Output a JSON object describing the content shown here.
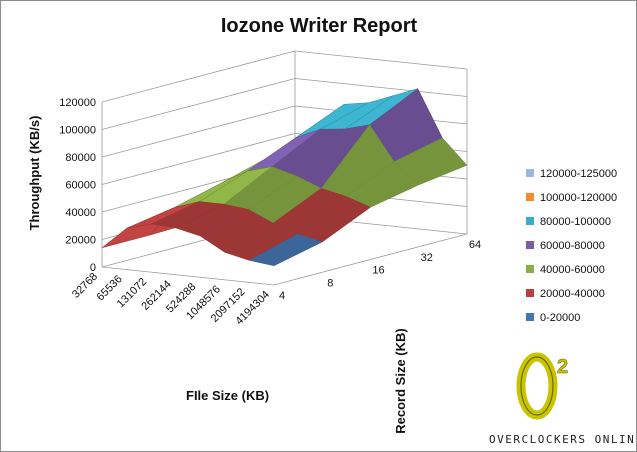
{
  "chart_data": {
    "type": "surface",
    "title": "Iozone Writer Report",
    "xlabel": "FIle Size (KB)",
    "ylabel": "Record Size (KB)",
    "zlabel": "Throughput (KB/s)",
    "file_sizes": [
      "32768",
      "65536",
      "131072",
      "262144",
      "524288",
      "1048576",
      "2097152",
      "4194304"
    ],
    "record_sizes": [
      "4",
      "8",
      "16",
      "32",
      "64"
    ],
    "z_ticks": [
      "0",
      "20000",
      "40000",
      "60000",
      "80000",
      "100000",
      "120000"
    ],
    "z_range": [
      0,
      120000
    ],
    "values": [
      [
        14000,
        14000,
        15000,
        18000,
        22000
      ],
      [
        30000,
        36000,
        45000,
        55000,
        60000
      ],
      [
        35000,
        42000,
        55000,
        70000,
        85000
      ],
      [
        34000,
        42000,
        60000,
        78000,
        88000
      ],
      [
        30000,
        40000,
        55000,
        80000,
        95000
      ],
      [
        20000,
        32000,
        48000,
        85000,
        102000
      ],
      [
        16000,
        26000,
        44000,
        60000,
        68000
      ],
      [
        14000,
        22000,
        38000,
        45000,
        50000
      ]
    ],
    "legend": [
      {
        "label": "120000-125000",
        "color": "#9bb7e0"
      },
      {
        "label": "100000-120000",
        "color": "#f58a2e"
      },
      {
        "label": "80000-100000",
        "color": "#3aaec7"
      },
      {
        "label": "60000-80000",
        "color": "#7a5cab"
      },
      {
        "label": "40000-60000",
        "color": "#8aae45"
      },
      {
        "label": "20000-40000",
        "color": "#b8413f"
      },
      {
        "label": "0-20000",
        "color": "#4677b5"
      }
    ],
    "legend_position": "right",
    "grid": true
  },
  "logo": {
    "text": "OVERCLOCKERS ONLINE"
  }
}
